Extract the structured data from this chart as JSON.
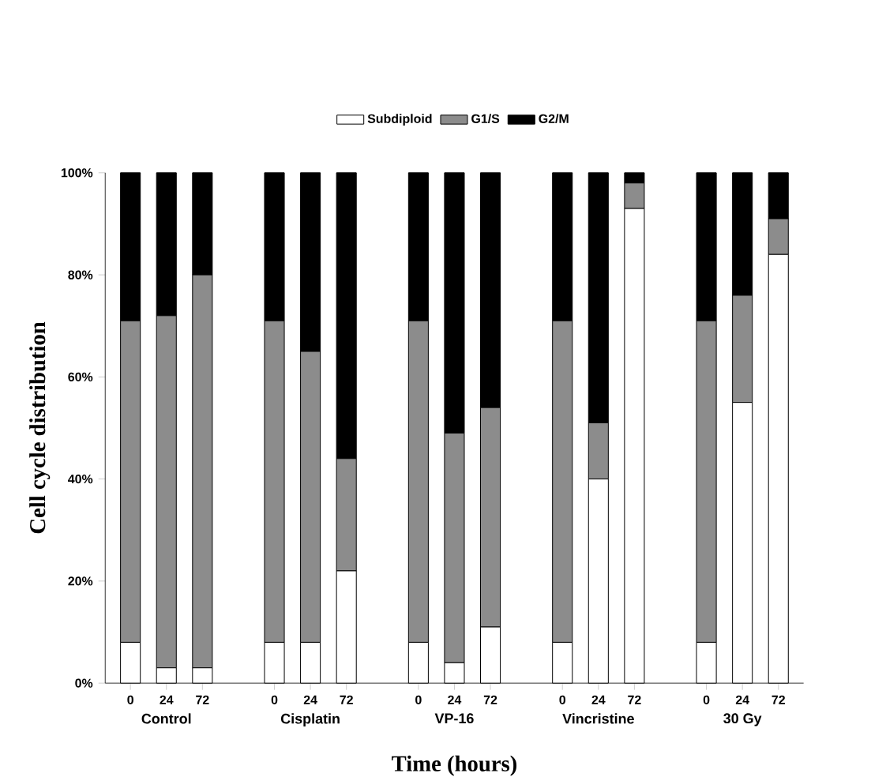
{
  "chart_data": {
    "type": "bar",
    "stacked": true,
    "xlabel": "Time (hours)",
    "ylabel": "Cell cycle distribution",
    "categories": [
      "0",
      "24",
      "72",
      "0",
      "24",
      "72",
      "0",
      "24",
      "72",
      "0",
      "24",
      "72",
      "0",
      "24",
      "72"
    ],
    "annotations": [
      "Control",
      "Cisplatin",
      "VP-16",
      "Vincristine",
      "30 Gy"
    ],
    "series": [
      {
        "name": "Subdiploid",
        "color": "#ffffff",
        "values": [
          8,
          3,
          3,
          8,
          8,
          22,
          8,
          4,
          11,
          8,
          40,
          93,
          8,
          55,
          84
        ]
      },
      {
        "name": "G1/S",
        "color": "#8c8c8c",
        "values": [
          63,
          69,
          77,
          63,
          57,
          22,
          63,
          45,
          43,
          63,
          11,
          5,
          63,
          21,
          7
        ]
      },
      {
        "name": "G2/M",
        "color": "#000000",
        "values": [
          29,
          28,
          20,
          29,
          35,
          56,
          29,
          51,
          46,
          29,
          49,
          2,
          29,
          24,
          9
        ]
      }
    ],
    "ylim": [
      0,
      100
    ],
    "yticks": [
      {
        "value": 0,
        "label": "0%"
      },
      {
        "value": 20,
        "label": "20%"
      },
      {
        "value": 40,
        "label": "40%"
      },
      {
        "value": 60,
        "label": "60%"
      },
      {
        "value": 80,
        "label": "80%"
      },
      {
        "value": 100,
        "label": "100%"
      }
    ],
    "legend": "top",
    "grid": false
  }
}
